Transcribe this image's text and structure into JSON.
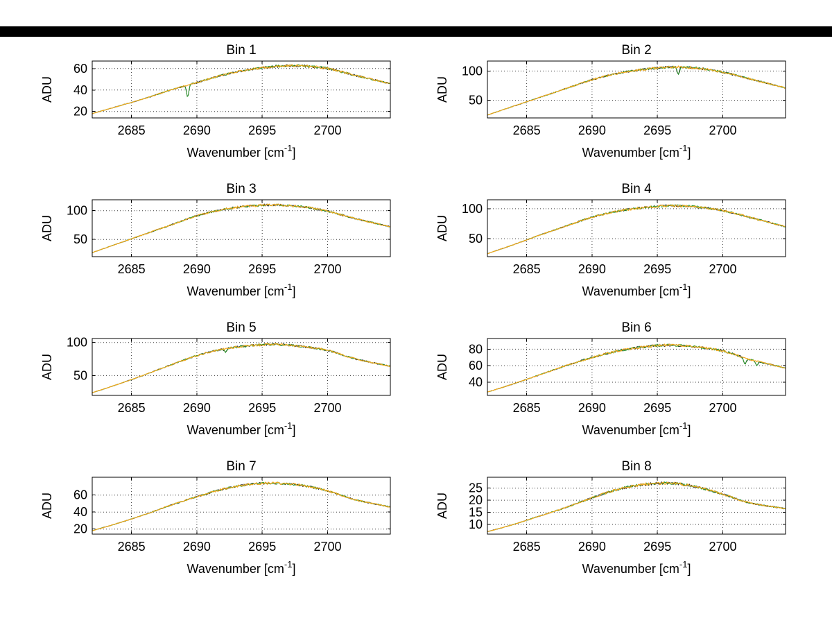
{
  "window": {
    "background": "#ffffff",
    "frame_top_color": "#000000"
  },
  "chart_data": {
    "type": "line",
    "layout": {
      "rows": 4,
      "cols": 2
    },
    "grid": "on",
    "legend": "none",
    "xlabel_parts": [
      "Wavenumber [cm",
      "-1",
      "]"
    ],
    "xlim": [
      2682,
      2704.8
    ],
    "xticks": [
      2685,
      2690,
      2695,
      2700
    ],
    "series": [
      {
        "name": "trace-dark",
        "color": "#2b2b2b"
      },
      {
        "name": "trace-green",
        "color": "#2e9e2e"
      },
      {
        "name": "trace-orange",
        "color": "#f2a81d"
      }
    ],
    "anchor_x": [
      2682,
      2684,
      2686,
      2688,
      2690,
      2692,
      2694,
      2696,
      2698,
      2700,
      2702,
      2704.8
    ],
    "charts": [
      {
        "title": "Bin 1",
        "ylabel": "ADU",
        "yticks": [
          20,
          40,
          60
        ],
        "ylim": [
          14,
          67
        ],
        "y": [
          18,
          25,
          32,
          40,
          47,
          54,
          59,
          62,
          62.5,
          60,
          54,
          46
        ],
        "noise": 1.1,
        "dips": [
          {
            "x": 2689.3,
            "depth": 11,
            "width": 0.12
          }
        ]
      },
      {
        "title": "Bin 2",
        "ylabel": "ADU",
        "yticks": [
          50,
          100
        ],
        "ylim": [
          20,
          117
        ],
        "y": [
          25,
          40,
          55,
          70,
          85,
          96,
          103,
          106.5,
          105,
          98,
          87,
          71
        ],
        "noise": 1.9,
        "dips": [
          {
            "x": 2696.6,
            "depth": 12,
            "width": 0.12
          }
        ]
      },
      {
        "title": "Bin 3",
        "ylabel": "ADU",
        "yticks": [
          50,
          100
        ],
        "ylim": [
          20,
          119
        ],
        "y": [
          27,
          43,
          59,
          75,
          91,
          102,
          108,
          110,
          107,
          99,
          87,
          72
        ],
        "noise": 1.9,
        "dips": []
      },
      {
        "title": "Bin 4",
        "ylabel": "ADU",
        "yticks": [
          50,
          100
        ],
        "ylim": [
          20,
          115
        ],
        "y": [
          25,
          40,
          56,
          71,
          86,
          96,
          102,
          105,
          103,
          97,
          86,
          70
        ],
        "noise": 1.9,
        "dips": []
      },
      {
        "title": "Bin 5",
        "ylabel": "ADU",
        "yticks": [
          50,
          100
        ],
        "ylim": [
          20,
          106
        ],
        "y": [
          24,
          37,
          51,
          66,
          80,
          90,
          95,
          97,
          94,
          88,
          76,
          64
        ],
        "noise": 1.7,
        "dips": [
          {
            "x": 2692.2,
            "depth": 6,
            "width": 0.12
          }
        ]
      },
      {
        "title": "Bin 6",
        "ylabel": "ADU",
        "yticks": [
          40,
          60,
          80
        ],
        "ylim": [
          24,
          93
        ],
        "y": [
          28,
          38,
          49,
          60,
          70,
          78,
          83,
          85,
          82.5,
          78,
          68,
          57
        ],
        "noise": 1.5,
        "dips": [
          {
            "x": 2701.7,
            "depth": 7,
            "width": 0.14
          },
          {
            "x": 2702.6,
            "depth": 5,
            "width": 0.12
          }
        ]
      },
      {
        "title": "Bin 7",
        "ylabel": "ADU",
        "yticks": [
          20,
          40,
          60
        ],
        "ylim": [
          14,
          81
        ],
        "y": [
          18,
          27,
          37,
          48,
          58,
          67,
          72.5,
          74,
          71.5,
          65,
          55,
          46
        ],
        "noise": 1.3,
        "dips": []
      },
      {
        "title": "Bin 8",
        "ylabel": "ADU",
        "yticks": [
          10,
          15,
          20,
          25
        ],
        "ylim": [
          6,
          29.5
        ],
        "y": [
          7,
          10,
          13.5,
          17,
          21,
          24.5,
          26.5,
          27,
          25.5,
          22.5,
          19,
          16.5
        ],
        "noise": 0.55,
        "dips": []
      }
    ]
  }
}
